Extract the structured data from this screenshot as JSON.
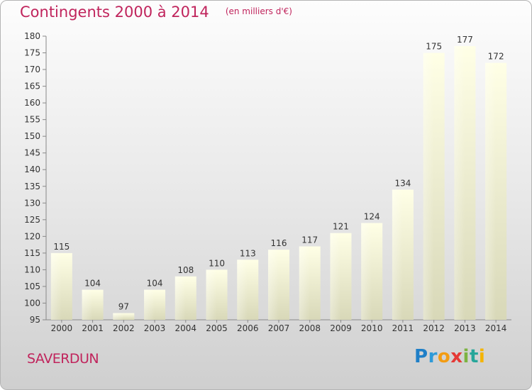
{
  "header": {
    "title": "Contingents 2000 à 2014",
    "unit": "(en milliers d'€)"
  },
  "footer": {
    "city": "SAVERDUN",
    "logo_text": "Proxiti",
    "logo_letters": [
      {
        "char": "P",
        "color": "#1f7fc7"
      },
      {
        "char": "r",
        "color": "#2e9ad8"
      },
      {
        "char": "o",
        "color": "#f39c12"
      },
      {
        "char": "x",
        "color": "#e53935"
      },
      {
        "char": "i",
        "color": "#7cb342"
      },
      {
        "char": "t",
        "color": "#26a69a"
      },
      {
        "char": "i",
        "color": "#f4b400"
      }
    ]
  },
  "colors": {
    "title": "#c0245c",
    "bar_top": "#ffffe6",
    "bar_bottom": "#d8d8b8"
  },
  "chart_data": {
    "type": "bar",
    "categories": [
      "2000",
      "2001",
      "2002",
      "2003",
      "2004",
      "2005",
      "2006",
      "2007",
      "2008",
      "2009",
      "2010",
      "2011",
      "2012",
      "2013",
      "2014"
    ],
    "values": [
      115,
      104,
      97,
      104,
      108,
      110,
      113,
      116,
      117,
      121,
      124,
      134,
      175,
      177,
      172
    ],
    "title": "Contingents 2000 à 2014",
    "subtitle": "(en milliers d'€)",
    "xlabel": "",
    "ylabel": "",
    "ylim": [
      95,
      180
    ],
    "ytick_step": 5,
    "grid": false,
    "data_labels": true
  }
}
